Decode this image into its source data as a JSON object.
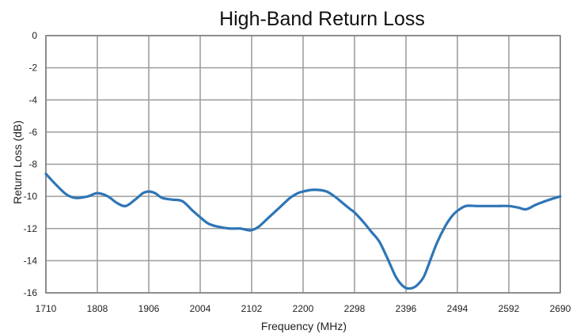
{
  "chart_data": {
    "type": "line",
    "title": "High-Band Return Loss",
    "xlabel": "Frequency (MHz)",
    "ylabel": "Return Loss (dB)",
    "xlim": [
      1710,
      2690
    ],
    "ylim": [
      -16,
      0
    ],
    "x_ticks": [
      1710,
      1808,
      1906,
      2004,
      2102,
      2200,
      2298,
      2396,
      2494,
      2592,
      2690
    ],
    "y_ticks": [
      0,
      -2,
      -4,
      -6,
      -8,
      -10,
      -12,
      -14,
      -16
    ],
    "grid": true,
    "legend": "none",
    "colors": {
      "series": "#2e75b6",
      "grid": "#9e9e9e",
      "frame": "#7f7f7f"
    },
    "series": [
      {
        "x": [
          1710,
          1730,
          1750,
          1768,
          1790,
          1808,
          1828,
          1845,
          1862,
          1880,
          1895,
          1906,
          1918,
          1932,
          1950,
          1970,
          1990,
          2004,
          2020,
          2040,
          2060,
          2080,
          2095,
          2102,
          2115,
          2135,
          2155,
          2175,
          2190,
          2200,
          2215,
          2230,
          2245,
          2260,
          2275,
          2290,
          2298,
          2315,
          2330,
          2345,
          2360,
          2375,
          2385,
          2396,
          2408,
          2418,
          2430,
          2442,
          2455,
          2470,
          2482,
          2494,
          2510,
          2530,
          2550,
          2570,
          2592,
          2610,
          2625,
          2645,
          2670,
          2690
        ],
        "y": [
          -8.6,
          -9.3,
          -9.9,
          -10.1,
          -10.0,
          -9.8,
          -10.0,
          -10.4,
          -10.6,
          -10.2,
          -9.8,
          -9.7,
          -9.8,
          -10.1,
          -10.2,
          -10.3,
          -10.9,
          -11.3,
          -11.7,
          -11.9,
          -12.0,
          -12.0,
          -12.1,
          -12.1,
          -11.9,
          -11.3,
          -10.7,
          -10.1,
          -9.8,
          -9.7,
          -9.6,
          -9.6,
          -9.7,
          -10.0,
          -10.4,
          -10.8,
          -11.0,
          -11.6,
          -12.2,
          -12.8,
          -13.8,
          -14.9,
          -15.4,
          -15.7,
          -15.7,
          -15.5,
          -15.0,
          -14.0,
          -12.9,
          -11.9,
          -11.3,
          -10.9,
          -10.6,
          -10.6,
          -10.6,
          -10.6,
          -10.6,
          -10.7,
          -10.8,
          -10.5,
          -10.2,
          -10.0
        ]
      }
    ]
  }
}
